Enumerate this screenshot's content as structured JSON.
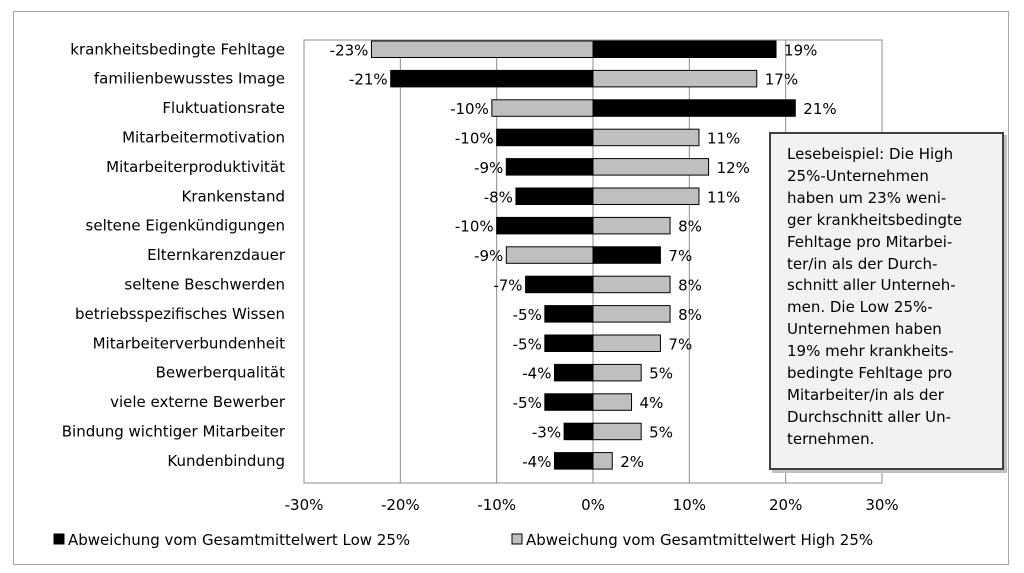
{
  "chart_data": {
    "type": "bar",
    "orientation": "horizontal",
    "categories": [
      "krankheitsbedingte Fehltage",
      "familienbewusstes Image",
      "Fluktuationsrate",
      "Mitarbeitermotivation",
      "Mitarbeiterproduktivität",
      "Krankenstand",
      "seltene Eigenkündigungen",
      "Elternkarenzdauer",
      "seltene Beschwerden",
      "betriebsspezifisches Wissen",
      "Mitarbeiterverbundenheit",
      "Bewerberqualität",
      "viele externe Bewerber",
      "Bindung wichtiger Mitarbeiter",
      "Kundenbindung"
    ],
    "series": [
      {
        "name": "Abweichung vom Gesamtmittelwert Low 25%",
        "color": "#000000",
        "values": [
          19,
          -21,
          21,
          -10,
          -9,
          -8,
          -10,
          7,
          -7,
          -5,
          -5,
          -4,
          -5,
          -3,
          -4
        ],
        "labels": [
          "19%",
          "-21%",
          "21%",
          "-10%",
          "-9%",
          "-8%",
          "-10%",
          "7%",
          "-7%",
          "-5%",
          "-5%",
          "-4%",
          "-5%",
          "-3%",
          "-4%"
        ]
      },
      {
        "name": "Abweichung vom Gesamtmittelwert High 25%",
        "color": "#bfbfbf",
        "values": [
          -23,
          17,
          -10.5,
          11,
          12,
          11,
          8,
          -9,
          8,
          8,
          7,
          5,
          4,
          5,
          2
        ],
        "labels": [
          "-23%",
          "17%",
          "-10%",
          "11%",
          "12%",
          "11%",
          "8%",
          "-9%",
          "8%",
          "8%",
          "7%",
          "5%",
          "4%",
          "5%",
          "2%"
        ]
      }
    ],
    "xlim": [
      -30,
      30
    ],
    "xticks": [
      -30,
      -20,
      -10,
      0,
      10,
      20,
      30
    ],
    "xtick_labels": [
      "-30%",
      "-20%",
      "-10%",
      "0%",
      "10%",
      "20%",
      "30%"
    ],
    "grid": "vertical",
    "legend_position": "bottom"
  },
  "annotation": {
    "text": "Lesebeispiel: Die High\n25%-Unternehmen\nhaben um 23% weni-\nger krankheitsbedingte\nFehltage pro Mitarbei-\nter/in als der Durch-\nschnitt aller Unterneh-\nmen. Die Low 25%-\nUnternehmen haben\n19% mehr krankheits-\nbedingte Fehltage pro\nMitarbeiter/in als der\nDurchschnitt aller Un-\nternehmen."
  }
}
